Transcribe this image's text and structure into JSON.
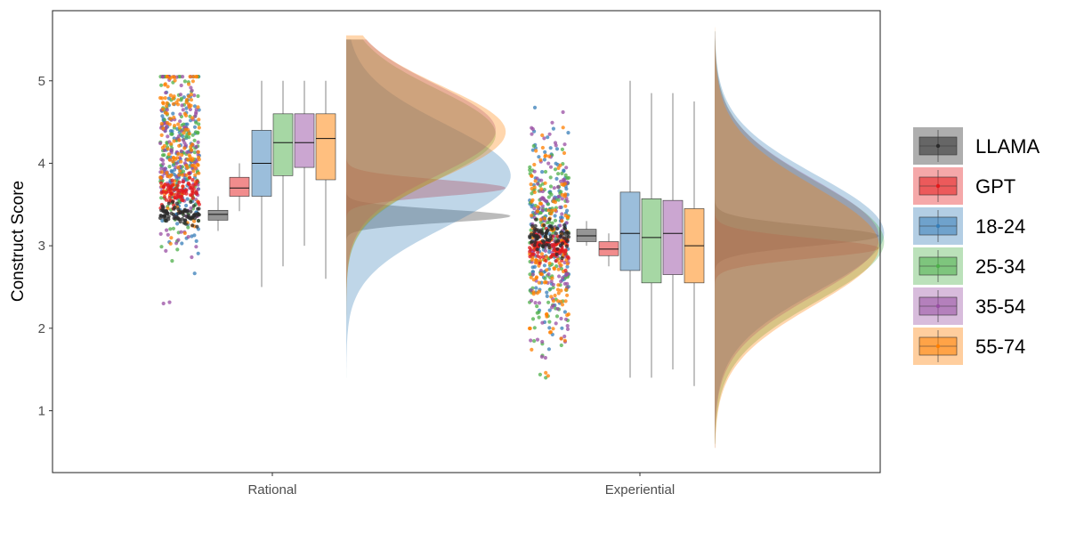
{
  "chart_data": {
    "type": "raincloud",
    "ylabel": "Construct Score",
    "xlabel": "",
    "categories": [
      "Rational",
      "Experiential"
    ],
    "y_ticks": [
      1,
      2,
      3,
      4,
      5
    ],
    "ylim": [
      0.25,
      5.85
    ],
    "grid": false,
    "legend_position": "right",
    "groups": [
      {
        "name": "LLAMA",
        "color": "#2b2b2b"
      },
      {
        "name": "GPT",
        "color": "#e41a1c"
      },
      {
        "name": "18-24",
        "color": "#377eb8"
      },
      {
        "name": "25-34",
        "color": "#4daf4a"
      },
      {
        "name": "35-54",
        "color": "#984ea3"
      },
      {
        "name": "55-74",
        "color": "#ff7f00"
      }
    ],
    "boxplots": {
      "Rational": [
        {
          "group": "LLAMA",
          "min": 3.18,
          "q1": 3.31,
          "median": 3.38,
          "q3": 3.43,
          "max": 3.6
        },
        {
          "group": "GPT",
          "min": 3.42,
          "q1": 3.6,
          "median": 3.7,
          "q3": 3.83,
          "max": 4.0
        },
        {
          "group": "18-24",
          "min": 2.5,
          "q1": 3.6,
          "median": 4.0,
          "q3": 4.4,
          "max": 5.0
        },
        {
          "group": "25-34",
          "min": 2.75,
          "q1": 3.85,
          "median": 4.25,
          "q3": 4.6,
          "max": 5.0
        },
        {
          "group": "35-54",
          "min": 3.0,
          "q1": 3.95,
          "median": 4.25,
          "q3": 4.6,
          "max": 5.0
        },
        {
          "group": "55-74",
          "min": 2.6,
          "q1": 3.8,
          "median": 4.3,
          "q3": 4.6,
          "max": 5.0
        }
      ],
      "Experiential": [
        {
          "group": "LLAMA",
          "min": 3.0,
          "q1": 3.05,
          "median": 3.12,
          "q3": 3.2,
          "max": 3.3
        },
        {
          "group": "GPT",
          "min": 2.75,
          "q1": 2.88,
          "median": 2.96,
          "q3": 3.05,
          "max": 3.15
        },
        {
          "group": "18-24",
          "min": 1.4,
          "q1": 2.7,
          "median": 3.15,
          "q3": 3.65,
          "max": 5.0
        },
        {
          "group": "25-34",
          "min": 1.4,
          "q1": 2.55,
          "median": 3.1,
          "q3": 3.57,
          "max": 4.85
        },
        {
          "group": "35-54",
          "min": 1.5,
          "q1": 2.65,
          "median": 3.15,
          "q3": 3.55,
          "max": 4.85
        },
        {
          "group": "55-74",
          "min": 1.3,
          "q1": 2.55,
          "median": 3.0,
          "q3": 3.45,
          "max": 4.75
        }
      ]
    },
    "densities": {
      "Rational": [
        {
          "group": "LLAMA",
          "mean": 3.36,
          "sd": 0.08,
          "peak": 0.33,
          "from": 2.6,
          "to": 4.2
        },
        {
          "group": "GPT",
          "mean": 3.7,
          "sd": 0.1,
          "peak": 0.32,
          "from": 2.9,
          "to": 4.5
        },
        {
          "group": "18-24",
          "mean": 3.85,
          "sd": 0.62,
          "peak": 0.33,
          "from": 1.4,
          "to": 5.5
        },
        {
          "group": "25-34",
          "mean": 4.35,
          "sd": 0.55,
          "peak": 0.3,
          "from": 1.45,
          "to": 5.5
        },
        {
          "group": "35-54",
          "mean": 4.4,
          "sd": 0.55,
          "peak": 0.3,
          "from": 1.45,
          "to": 5.5
        },
        {
          "group": "55-74",
          "mean": 4.38,
          "sd": 0.55,
          "peak": 0.32,
          "from": 1.45,
          "to": 5.55
        }
      ],
      "Experiential": [
        {
          "group": "LLAMA",
          "mean": 3.12,
          "sd": 0.12,
          "peak": 0.33,
          "from": 2.2,
          "to": 4.0
        },
        {
          "group": "GPT",
          "mean": 2.97,
          "sd": 0.12,
          "peak": 0.33,
          "from": 2.1,
          "to": 3.9
        },
        {
          "group": "18-24",
          "mean": 3.15,
          "sd": 0.7,
          "peak": 0.34,
          "from": 0.55,
          "to": 5.6
        },
        {
          "group": "25-34",
          "mean": 3.05,
          "sd": 0.72,
          "peak": 0.34,
          "from": 0.6,
          "to": 5.6
        },
        {
          "group": "35-54",
          "mean": 3.1,
          "sd": 0.7,
          "peak": 0.33,
          "from": 0.55,
          "to": 5.6
        },
        {
          "group": "55-74",
          "mean": 3.0,
          "sd": 0.72,
          "peak": 0.33,
          "from": 0.55,
          "to": 5.65
        }
      ]
    },
    "jitter_points": {
      "Rational": [
        {
          "group": "LLAMA",
          "center": 3.37,
          "spread": 0.06,
          "min": 3.2,
          "max": 3.6,
          "n": 80
        },
        {
          "group": "GPT",
          "center": 3.66,
          "spread": 0.09,
          "min": 3.45,
          "max": 3.95,
          "n": 80
        },
        {
          "group": "18-24",
          "center": 4.0,
          "spread": 0.55,
          "min": 1.85,
          "max": 5.05,
          "n": 140
        },
        {
          "group": "25-34",
          "center": 4.15,
          "spread": 0.55,
          "min": 2.0,
          "max": 5.05,
          "n": 140
        },
        {
          "group": "35-54",
          "center": 4.15,
          "spread": 0.55,
          "min": 2.3,
          "max": 5.05,
          "n": 140
        },
        {
          "group": "55-74",
          "center": 4.15,
          "spread": 0.55,
          "min": 1.95,
          "max": 5.05,
          "n": 140
        }
      ],
      "Experiential": [
        {
          "group": "LLAMA",
          "center": 3.12,
          "spread": 0.08,
          "min": 2.85,
          "max": 3.4,
          "n": 80
        },
        {
          "group": "GPT",
          "center": 2.97,
          "spread": 0.09,
          "min": 2.7,
          "max": 3.3,
          "n": 80
        },
        {
          "group": "18-24",
          "center": 3.1,
          "spread": 0.65,
          "min": 1.4,
          "max": 5.0,
          "n": 140
        },
        {
          "group": "25-34",
          "center": 3.05,
          "spread": 0.65,
          "min": 1.4,
          "max": 4.9,
          "n": 140
        },
        {
          "group": "35-54",
          "center": 3.1,
          "spread": 0.65,
          "min": 1.1,
          "max": 4.9,
          "n": 140
        },
        {
          "group": "55-74",
          "center": 3.0,
          "spread": 0.65,
          "min": 1.25,
          "max": 4.95,
          "n": 140
        }
      ]
    }
  }
}
